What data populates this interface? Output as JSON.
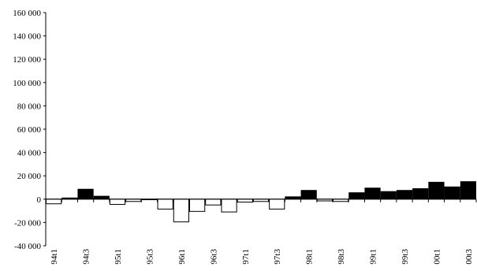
{
  "chart_data": {
    "type": "bar",
    "title": "",
    "xlabel": "",
    "ylabel": "",
    "ylim": [
      -40000,
      160000
    ],
    "yticks": [
      -40000,
      -20000,
      0,
      20000,
      40000,
      60000,
      80000,
      100000,
      120000,
      140000,
      160000
    ],
    "ytick_labels": [
      "-40 000",
      "-20 000",
      "0",
      "20 000",
      "40 000",
      "60 000",
      "80 000",
      "100 000",
      "120 000",
      "140 000",
      "160 000"
    ],
    "grid": false,
    "legend": "none",
    "colors": {
      "positive": "#000000",
      "negative": "#ffffff",
      "outline": "#000000"
    },
    "categories": [
      "94t1",
      "94t2",
      "94t3",
      "94t4",
      "95t1",
      "95t2",
      "95t3",
      "95t4",
      "96t1",
      "96t2",
      "96t3",
      "96t4",
      "97t1",
      "97t2",
      "97t3",
      "97t4",
      "98t1",
      "98t2",
      "98t3",
      "98t4",
      "99t1",
      "99t2",
      "99t3",
      "99t4",
      "00t1",
      "00t2",
      "00t3"
    ],
    "tick_labels": [
      "94t1",
      "",
      "94t3",
      "",
      "95t1",
      "",
      "95t3",
      "",
      "96t1",
      "",
      "96t3",
      "",
      "97t1",
      "",
      "97t3",
      "",
      "98t1",
      "",
      "98t3",
      "",
      "99t1",
      "",
      "99t3",
      "",
      "00t1",
      "",
      "00t3"
    ],
    "values": [
      -4000,
      1000,
      8500,
      2500,
      -4500,
      -2000,
      -500,
      -8500,
      -19500,
      -10500,
      -5000,
      -11000,
      -2500,
      -2000,
      -8500,
      2000,
      7500,
      -1500,
      -2000,
      5500,
      9500,
      6500,
      7500,
      9000,
      14500,
      10500,
      15000
    ]
  }
}
